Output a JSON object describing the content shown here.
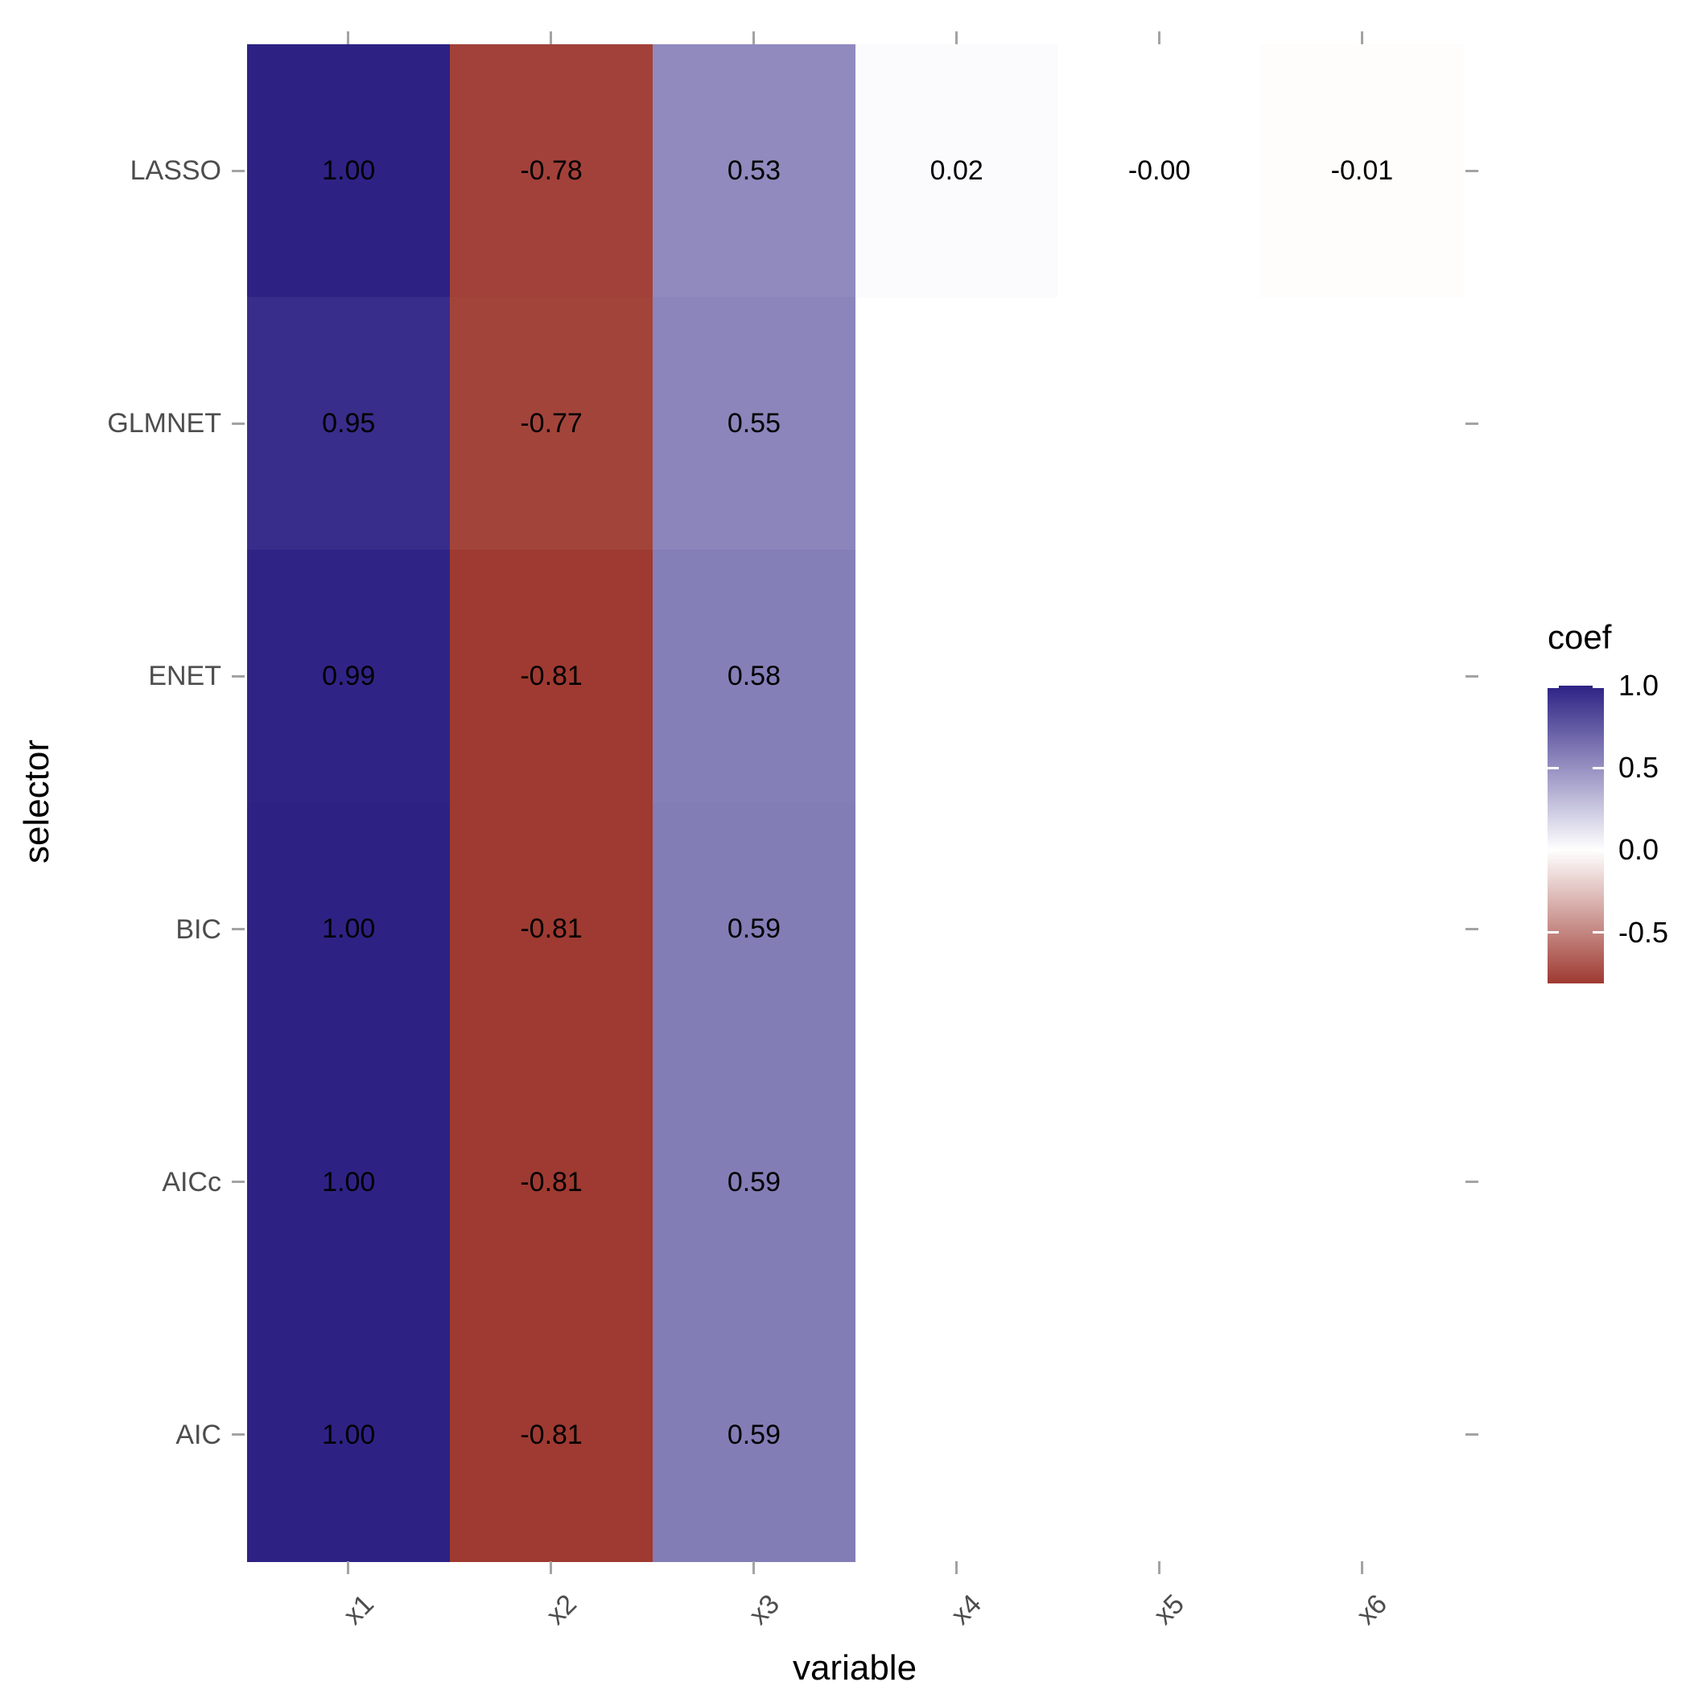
{
  "chart_data": {
    "type": "heatmap",
    "title": "",
    "xlabel": "variable",
    "ylabel": "selector",
    "x_categories": [
      "x1",
      "x2",
      "x3",
      "x4",
      "x5",
      "x6"
    ],
    "y_categories_top_to_bottom": [
      "LASSO",
      "GLMNET",
      "ENET",
      "BIC",
      "AICc",
      "AIC"
    ],
    "values": [
      [
        1.0,
        -0.78,
        0.53,
        0.02,
        -0.0,
        -0.01
      ],
      [
        0.95,
        -0.77,
        0.55,
        null,
        null,
        null
      ],
      [
        0.99,
        -0.81,
        0.58,
        null,
        null,
        null
      ],
      [
        1.0,
        -0.81,
        0.59,
        null,
        null,
        null
      ],
      [
        1.0,
        -0.81,
        0.59,
        null,
        null,
        null
      ],
      [
        1.0,
        -0.81,
        0.59,
        null,
        null,
        null
      ]
    ],
    "cell_labels": [
      [
        "1.00",
        "-0.78",
        "0.53",
        "0.02",
        "-0.00",
        "-0.01"
      ],
      [
        "0.95",
        "-0.77",
        "0.55",
        null,
        null,
        null
      ],
      [
        "0.99",
        "-0.81",
        "0.58",
        null,
        null,
        null
      ],
      [
        "1.00",
        "-0.81",
        "0.59",
        null,
        null,
        null
      ],
      [
        "1.00",
        "-0.81",
        "0.59",
        null,
        null,
        null
      ],
      [
        "1.00",
        "-0.81",
        "0.59",
        null,
        null,
        null
      ]
    ],
    "color_high": "#2d2284",
    "color_mid": "#ffffff",
    "color_low": "#9e3a31",
    "grid": false,
    "legend": {
      "title": "coef",
      "position": "right",
      "ticks": [
        "1.0",
        "0.5",
        "0.0",
        "-0.5"
      ],
      "tick_values": [
        1.0,
        0.5,
        0.0,
        -0.5
      ],
      "range": [
        -0.81,
        1.0
      ]
    }
  }
}
